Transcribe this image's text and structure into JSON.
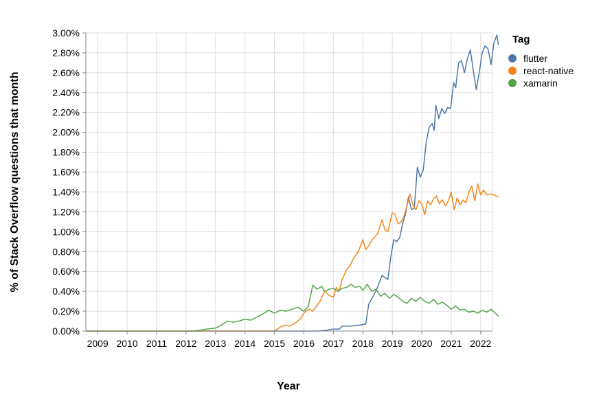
{
  "chart_data": {
    "type": "line",
    "xlabel": "Year",
    "ylabel": "% of Stack Overflow questions that month",
    "xlim": [
      2008.6,
      2022.4
    ],
    "ylim": [
      0,
      3.0
    ],
    "x_ticks": [
      "2009",
      "2010",
      "2011",
      "2012",
      "2013",
      "2014",
      "2015",
      "2016",
      "2017",
      "2018",
      "2019",
      "2020",
      "2021",
      "2022"
    ],
    "y_ticks": [
      "0.00%",
      "0.20%",
      "0.40%",
      "0.60%",
      "0.80%",
      "1.00%",
      "1.20%",
      "1.40%",
      "1.60%",
      "1.80%",
      "2.00%",
      "2.20%",
      "2.40%",
      "2.60%",
      "2.80%",
      "3.00%"
    ],
    "grid": true,
    "legend": {
      "title": "Tag",
      "placement": "top-right"
    },
    "series": [
      {
        "name": "flutter",
        "color": "#4c78a8",
        "points": [
          [
            2008.6,
            0.0
          ],
          [
            2016.5,
            0.0
          ],
          [
            2016.8,
            0.01
          ],
          [
            2017.0,
            0.02
          ],
          [
            2017.2,
            0.02
          ],
          [
            2017.3,
            0.05
          ],
          [
            2017.6,
            0.05
          ],
          [
            2017.9,
            0.06
          ],
          [
            2018.1,
            0.07
          ],
          [
            2018.2,
            0.27
          ],
          [
            2018.35,
            0.35
          ],
          [
            2018.5,
            0.44
          ],
          [
            2018.65,
            0.56
          ],
          [
            2018.75,
            0.54
          ],
          [
            2018.85,
            0.52
          ],
          [
            2018.95,
            0.75
          ],
          [
            2019.05,
            0.92
          ],
          [
            2019.15,
            0.9
          ],
          [
            2019.25,
            0.94
          ],
          [
            2019.35,
            1.08
          ],
          [
            2019.45,
            1.18
          ],
          [
            2019.55,
            1.35
          ],
          [
            2019.65,
            1.22
          ],
          [
            2019.75,
            1.24
          ],
          [
            2019.85,
            1.65
          ],
          [
            2019.95,
            1.55
          ],
          [
            2020.05,
            1.62
          ],
          [
            2020.15,
            1.9
          ],
          [
            2020.25,
            2.05
          ],
          [
            2020.35,
            2.09
          ],
          [
            2020.42,
            2.02
          ],
          [
            2020.48,
            2.27
          ],
          [
            2020.58,
            2.14
          ],
          [
            2020.68,
            2.24
          ],
          [
            2020.78,
            2.19
          ],
          [
            2020.88,
            2.25
          ],
          [
            2020.98,
            2.24
          ],
          [
            2021.08,
            2.5
          ],
          [
            2021.15,
            2.45
          ],
          [
            2021.25,
            2.7
          ],
          [
            2021.35,
            2.72
          ],
          [
            2021.45,
            2.6
          ],
          [
            2021.55,
            2.74
          ],
          [
            2021.65,
            2.83
          ],
          [
            2021.75,
            2.62
          ],
          [
            2021.85,
            2.43
          ],
          [
            2021.95,
            2.6
          ],
          [
            2022.05,
            2.8
          ],
          [
            2022.15,
            2.87
          ],
          [
            2022.25,
            2.84
          ],
          [
            2022.35,
            2.68
          ],
          [
            2022.45,
            2.9
          ],
          [
            2022.55,
            2.98
          ],
          [
            2022.6,
            2.88
          ]
        ]
      },
      {
        "name": "react-native",
        "color": "#f58518",
        "points": [
          [
            2008.6,
            0.0
          ],
          [
            2015.0,
            0.0
          ],
          [
            2015.2,
            0.04
          ],
          [
            2015.35,
            0.06
          ],
          [
            2015.5,
            0.05
          ],
          [
            2015.6,
            0.06
          ],
          [
            2015.75,
            0.09
          ],
          [
            2015.9,
            0.13
          ],
          [
            2016.0,
            0.18
          ],
          [
            2016.1,
            0.21
          ],
          [
            2016.2,
            0.22
          ],
          [
            2016.3,
            0.2
          ],
          [
            2016.4,
            0.24
          ],
          [
            2016.55,
            0.3
          ],
          [
            2016.7,
            0.4
          ],
          [
            2016.85,
            0.36
          ],
          [
            2017.0,
            0.34
          ],
          [
            2017.1,
            0.44
          ],
          [
            2017.2,
            0.4
          ],
          [
            2017.3,
            0.52
          ],
          [
            2017.45,
            0.62
          ],
          [
            2017.55,
            0.65
          ],
          [
            2017.7,
            0.74
          ],
          [
            2017.85,
            0.8
          ],
          [
            2018.0,
            0.92
          ],
          [
            2018.1,
            0.82
          ],
          [
            2018.2,
            0.86
          ],
          [
            2018.35,
            0.93
          ],
          [
            2018.5,
            0.98
          ],
          [
            2018.65,
            1.12
          ],
          [
            2018.75,
            1.02
          ],
          [
            2018.85,
            1.0
          ],
          [
            2019.0,
            1.19
          ],
          [
            2019.1,
            1.17
          ],
          [
            2019.2,
            1.08
          ],
          [
            2019.3,
            1.1
          ],
          [
            2019.4,
            1.16
          ],
          [
            2019.5,
            1.26
          ],
          [
            2019.6,
            1.38
          ],
          [
            2019.7,
            1.27
          ],
          [
            2019.8,
            1.22
          ],
          [
            2019.9,
            1.31
          ],
          [
            2020.0,
            1.28
          ],
          [
            2020.1,
            1.17
          ],
          [
            2020.2,
            1.31
          ],
          [
            2020.3,
            1.27
          ],
          [
            2020.4,
            1.33
          ],
          [
            2020.5,
            1.36
          ],
          [
            2020.6,
            1.28
          ],
          [
            2020.7,
            1.32
          ],
          [
            2020.8,
            1.26
          ],
          [
            2020.9,
            1.31
          ],
          [
            2021.0,
            1.4
          ],
          [
            2021.1,
            1.22
          ],
          [
            2021.2,
            1.34
          ],
          [
            2021.3,
            1.27
          ],
          [
            2021.4,
            1.32
          ],
          [
            2021.5,
            1.29
          ],
          [
            2021.6,
            1.4
          ],
          [
            2021.7,
            1.46
          ],
          [
            2021.8,
            1.31
          ],
          [
            2021.9,
            1.48
          ],
          [
            2022.0,
            1.37
          ],
          [
            2022.1,
            1.42
          ],
          [
            2022.2,
            1.37
          ],
          [
            2022.3,
            1.38
          ],
          [
            2022.45,
            1.37
          ],
          [
            2022.6,
            1.35
          ]
        ]
      },
      {
        "name": "xamarin",
        "color": "#54a24b",
        "points": [
          [
            2008.6,
            0.0
          ],
          [
            2012.2,
            0.0
          ],
          [
            2012.5,
            0.01
          ],
          [
            2012.7,
            0.02
          ],
          [
            2013.0,
            0.03
          ],
          [
            2013.2,
            0.06
          ],
          [
            2013.4,
            0.1
          ],
          [
            2013.6,
            0.09
          ],
          [
            2013.8,
            0.1
          ],
          [
            2014.0,
            0.12
          ],
          [
            2014.2,
            0.11
          ],
          [
            2014.4,
            0.14
          ],
          [
            2014.6,
            0.17
          ],
          [
            2014.8,
            0.21
          ],
          [
            2015.0,
            0.18
          ],
          [
            2015.2,
            0.21
          ],
          [
            2015.4,
            0.2
          ],
          [
            2015.6,
            0.22
          ],
          [
            2015.8,
            0.24
          ],
          [
            2016.0,
            0.2
          ],
          [
            2016.15,
            0.25
          ],
          [
            2016.3,
            0.46
          ],
          [
            2016.45,
            0.42
          ],
          [
            2016.6,
            0.45
          ],
          [
            2016.7,
            0.4
          ],
          [
            2016.85,
            0.42
          ],
          [
            2017.0,
            0.43
          ],
          [
            2017.15,
            0.4
          ],
          [
            2017.3,
            0.43
          ],
          [
            2017.45,
            0.44
          ],
          [
            2017.6,
            0.47
          ],
          [
            2017.75,
            0.44
          ],
          [
            2017.9,
            0.45
          ],
          [
            2018.0,
            0.41
          ],
          [
            2018.15,
            0.47
          ],
          [
            2018.3,
            0.4
          ],
          [
            2018.45,
            0.42
          ],
          [
            2018.6,
            0.35
          ],
          [
            2018.75,
            0.38
          ],
          [
            2018.9,
            0.33
          ],
          [
            2019.05,
            0.37
          ],
          [
            2019.2,
            0.34
          ],
          [
            2019.35,
            0.3
          ],
          [
            2019.5,
            0.28
          ],
          [
            2019.65,
            0.33
          ],
          [
            2019.8,
            0.3
          ],
          [
            2019.95,
            0.34
          ],
          [
            2020.1,
            0.3
          ],
          [
            2020.25,
            0.28
          ],
          [
            2020.4,
            0.32
          ],
          [
            2020.55,
            0.27
          ],
          [
            2020.7,
            0.29
          ],
          [
            2020.85,
            0.26
          ],
          [
            2021.0,
            0.22
          ],
          [
            2021.15,
            0.25
          ],
          [
            2021.3,
            0.21
          ],
          [
            2021.45,
            0.22
          ],
          [
            2021.6,
            0.19
          ],
          [
            2021.75,
            0.2
          ],
          [
            2021.9,
            0.18
          ],
          [
            2022.05,
            0.21
          ],
          [
            2022.2,
            0.19
          ],
          [
            2022.35,
            0.22
          ],
          [
            2022.5,
            0.18
          ],
          [
            2022.6,
            0.15
          ]
        ]
      }
    ]
  }
}
